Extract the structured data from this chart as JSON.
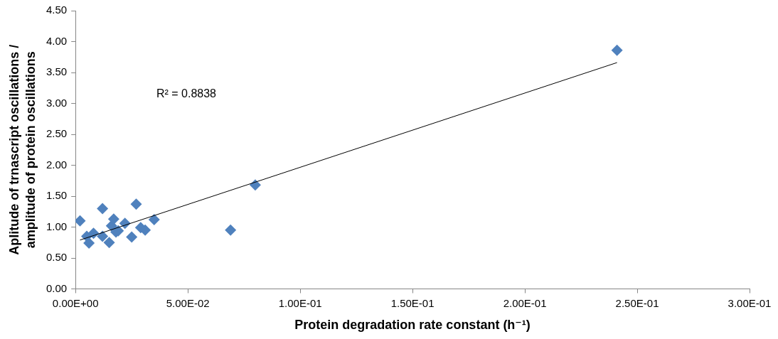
{
  "chart_data": {
    "type": "scatter",
    "xlabel": "Protein degradation rate constant (h⁻¹)",
    "ylabel": "Aplitude of trnascript oscillations / amplitude of protein oscillations",
    "annotations": [
      "R² = 0.8838"
    ],
    "xlim": [
      0,
      0.3
    ],
    "xticks": [
      {
        "value": 0,
        "label": "0.00E+00"
      },
      {
        "value": 0.05,
        "label": "5.00E-02"
      },
      {
        "value": 0.1,
        "label": "1.00E-01"
      },
      {
        "value": 0.15,
        "label": "1.50E-01"
      },
      {
        "value": 0.2,
        "label": "2.00E-01"
      },
      {
        "value": 0.25,
        "label": "2.50E-01"
      },
      {
        "value": 0.3,
        "label": "3.00E-01"
      }
    ],
    "ylim": [
      0,
      4.5
    ],
    "yticks": [
      {
        "value": 0,
        "label": "0.00"
      },
      {
        "value": 0.5,
        "label": "0.50"
      },
      {
        "value": 1,
        "label": "1.00"
      },
      {
        "value": 1.5,
        "label": "1.50"
      },
      {
        "value": 2,
        "label": "2.00"
      },
      {
        "value": 2.5,
        "label": "2.50"
      },
      {
        "value": 3,
        "label": "3.00"
      },
      {
        "value": 3.5,
        "label": "3.50"
      },
      {
        "value": 4,
        "label": "4.00"
      },
      {
        "value": 4.5,
        "label": "4.50"
      }
    ],
    "grid": false,
    "legend": false,
    "marker": "diamond",
    "series": [
      {
        "color": "#4f81bd",
        "x": [
          0.002,
          0.005,
          0.006,
          0.008,
          0.012,
          0.012,
          0.015,
          0.016,
          0.017,
          0.018,
          0.019,
          0.022,
          0.025,
          0.027,
          0.029,
          0.031,
          0.035,
          0.069,
          0.08,
          0.241
        ],
        "values": [
          1.1,
          0.85,
          0.74,
          0.9,
          1.3,
          0.85,
          0.75,
          1.02,
          1.13,
          0.92,
          0.94,
          1.06,
          0.84,
          1.37,
          0.99,
          0.95,
          1.12,
          0.95,
          1.68,
          3.86
        ]
      },
      {
        "type": "line",
        "marker": "none",
        "color": "#000000",
        "x": [
          0.002,
          0.241
        ],
        "values": [
          0.79,
          3.66
        ]
      }
    ]
  }
}
